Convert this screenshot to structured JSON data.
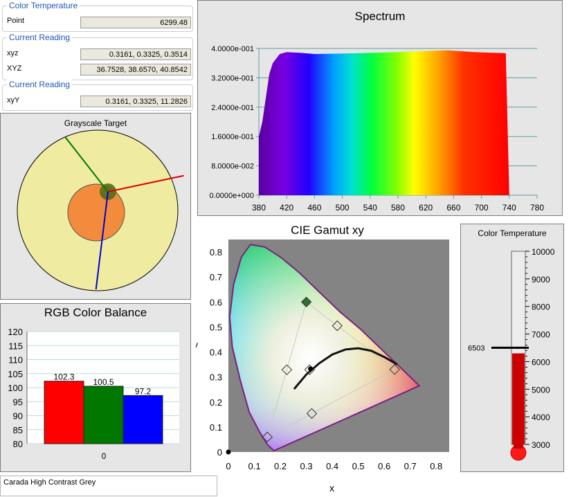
{
  "color_temp_group": {
    "title": "Color Temperature",
    "point_label": "Point",
    "point_value": "6299.48"
  },
  "reading_group_1": {
    "title": "Current Reading",
    "xyz_label": "xyz",
    "xyz_value": "0.3161, 0.3325, 0.3514",
    "XYZ_label": "XYZ",
    "XYZ_value": "36.7528, 38.6570, 40.8542"
  },
  "reading_group_2": {
    "title": "Current Reading",
    "xyY_label": "xyY",
    "xyY_value": "0.3161, 0.3325, 11.2826"
  },
  "grayscale": {
    "title": "Grayscale Target"
  },
  "rgb_balance": {
    "title": "RGB Color Balance",
    "x_label": "0"
  },
  "spectrum": {
    "title": "Spectrum"
  },
  "gamut": {
    "title": "CIE Gamut xy",
    "xlabel": "x",
    "ylabel": "y"
  },
  "temperature_gauge": {
    "title": "Color Temperature",
    "target_label": "6503"
  },
  "profile": {
    "name": "Carada High Contrast Grey"
  },
  "colors": {
    "red": "#ff0000",
    "green": "#007800",
    "blue": "#0000ff",
    "panel_bg": "#e6e6e6"
  },
  "chart_data": [
    {
      "type": "bar",
      "title": "RGB Color Balance",
      "categories": [
        "0"
      ],
      "series": [
        {
          "values": [
            102.3
          ],
          "color": "#ff0000"
        },
        {
          "values": [
            100.5
          ],
          "color": "#007800"
        },
        {
          "values": [
            97.2
          ],
          "color": "#0000ff"
        }
      ],
      "data_labels": [
        "102.3",
        "100.5",
        "97.2"
      ],
      "ylim": [
        80,
        120
      ],
      "yticks": [
        "120",
        "115",
        "110",
        "105",
        "100",
        "95",
        "90",
        "85",
        "80"
      ],
      "grid": true
    },
    {
      "type": "area",
      "title": "Spectrum",
      "x": [
        380,
        385,
        395,
        400,
        410,
        420,
        440,
        460,
        500,
        540,
        580,
        620,
        650,
        690,
        720,
        735,
        740
      ],
      "y": [
        0.16,
        0.2,
        0.33,
        0.36,
        0.385,
        0.39,
        0.388,
        0.385,
        0.386,
        0.388,
        0.39,
        0.393,
        0.395,
        0.39,
        0.388,
        0.387,
        0
      ],
      "xlim": [
        380,
        780
      ],
      "ylim": [
        0,
        0.4
      ],
      "xticks": [
        "380",
        "420",
        "460",
        "500",
        "540",
        "580",
        "620",
        "660",
        "700",
        "740",
        "780"
      ],
      "yticks": [
        "4.0000e-001",
        "3.2000e-001",
        "2.4000e-001",
        "1.6000e-001",
        "8.0000e-002",
        "0.0000e+000"
      ],
      "grid": true
    },
    {
      "type": "scatter",
      "title": "CIE Gamut xy",
      "xlabel": "x",
      "ylabel": "y",
      "xlim": [
        0,
        0.85
      ],
      "ylim": [
        0,
        0.85
      ],
      "xticks": [
        "0",
        "0.1",
        "0.2",
        "0.3",
        "0.4",
        "0.5",
        "0.6",
        "0.7",
        "0.8"
      ],
      "yticks": [
        "0.8",
        "0.7",
        "0.6",
        "0.5",
        "0.4",
        "0.3",
        "0.2",
        "0.1",
        "0"
      ],
      "gamut_triangle": [
        [
          0.64,
          0.33
        ],
        [
          0.3,
          0.6
        ],
        [
          0.15,
          0.06
        ]
      ],
      "secondaries": [
        [
          0.225,
          0.329
        ],
        [
          0.419,
          0.505
        ],
        [
          0.321,
          0.154
        ]
      ],
      "measured_primaries": [
        [
          0.64,
          0.33
        ],
        [
          0.3,
          0.6
        ],
        [
          0.15,
          0.06
        ]
      ],
      "measured_white": [
        0.3161,
        0.3325
      ],
      "target_white": [
        0.3127,
        0.329
      ],
      "planckian_locus": [
        [
          0.253,
          0.252
        ],
        [
          0.3,
          0.31
        ],
        [
          0.35,
          0.355
        ],
        [
          0.4,
          0.39
        ],
        [
          0.45,
          0.41
        ],
        [
          0.5,
          0.415
        ],
        [
          0.55,
          0.405
        ],
        [
          0.6,
          0.38
        ],
        [
          0.65,
          0.35
        ]
      ]
    },
    {
      "type": "gauge",
      "title": "Color Temperature",
      "value": 6299.48,
      "target": 6503,
      "range": [
        3000,
        10000
      ],
      "ticks": [
        "10000",
        "9000",
        "8000",
        "7000",
        "6000",
        "5000",
        "4000",
        "3000"
      ]
    },
    {
      "type": "target",
      "title": "Grayscale Target",
      "vectors_deg": {
        "red": 12,
        "green": 128,
        "blue": 263
      }
    }
  ]
}
